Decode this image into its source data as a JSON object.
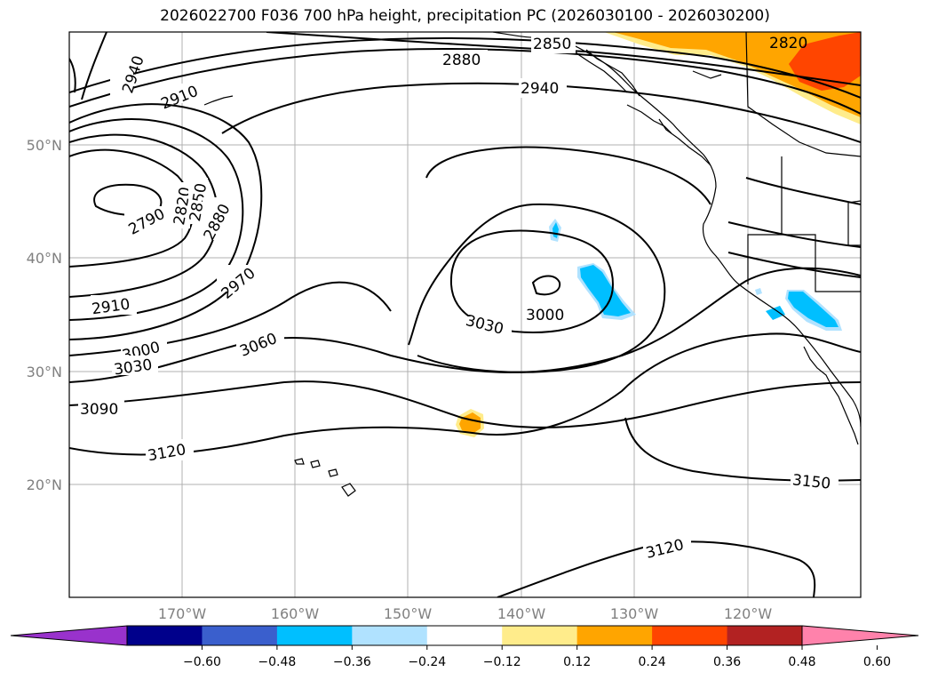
{
  "title": "2026022700 F036 700 hPa height, precipitation PC (2026030100 - 2026030200)",
  "lat_ticks": [
    "50°N",
    "40°N",
    "30°N",
    "20°N"
  ],
  "lon_ticks": [
    "170°W",
    "160°W",
    "150°W",
    "140°W",
    "130°W",
    "120°W"
  ],
  "colorbar": {
    "colors": [
      "#9932CC",
      "#00008B",
      "#3A5FCD",
      "#00BFFF",
      "#B0E2FF",
      "#FFFFFF",
      "#FFEC8B",
      "#FFA500",
      "#FF4500",
      "#B22222",
      "#FF82AB"
    ],
    "labels": [
      "−0.60",
      "−0.48",
      "−0.36",
      "−0.24",
      "−0.12",
      "0.12",
      "0.24",
      "0.36",
      "0.48",
      "0.60"
    ]
  },
  "contour_labels": [
    "2940",
    "2910",
    "2850",
    "2880",
    "2940",
    "2820",
    "2790",
    "2820",
    "2850",
    "2880",
    "2970",
    "2910",
    "3000",
    "3030",
    "3060",
    "3090",
    "3030",
    "3000",
    "3120",
    "3150",
    "3120"
  ]
}
